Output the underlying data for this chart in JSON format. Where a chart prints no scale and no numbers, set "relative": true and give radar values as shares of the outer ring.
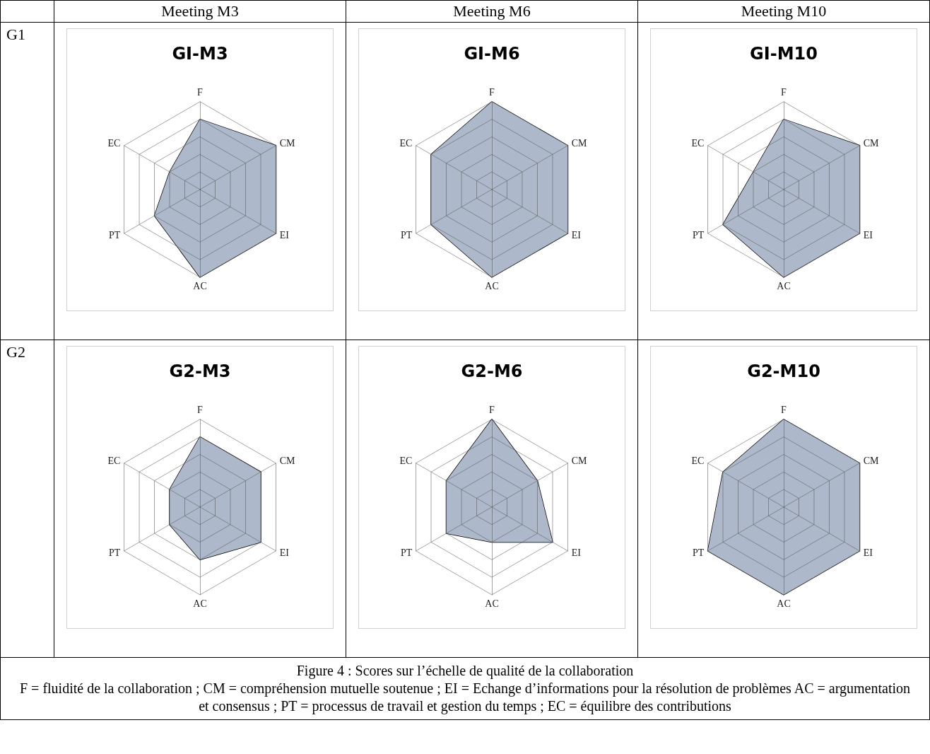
{
  "chart_data": [
    {
      "type": "radar",
      "title": "GI-M3",
      "relative": true,
      "categories": [
        "F",
        "CM",
        "EI",
        "AC",
        "PT",
        "EC"
      ],
      "series": [
        {
          "color": "#adb9ca",
          "values": [
            0.8,
            1,
            1,
            1,
            0.6,
            0.4
          ]
        }
      ],
      "annotations": [
        "Meeting M3",
        "G1"
      ]
    },
    {
      "type": "radar",
      "title": "GI-M6",
      "relative": true,
      "categories": [
        "F",
        "CM",
        "EI",
        "AC",
        "PT",
        "EC"
      ],
      "series": [
        {
          "color": "#adb9ca",
          "values": [
            1,
            1,
            1,
            1,
            0.8,
            0.8
          ]
        }
      ],
      "annotations": [
        "Meeting M6"
      ]
    },
    {
      "type": "radar",
      "title": "GI-M10",
      "relative": true,
      "categories": [
        "F",
        "CM",
        "EI",
        "AC",
        "PT",
        "EC"
      ],
      "series": [
        {
          "color": "#adb9ca",
          "values": [
            0.8,
            1,
            1,
            1,
            0.8,
            0.4
          ]
        }
      ],
      "annotations": [
        "Meeting M10"
      ]
    },
    {
      "type": "radar",
      "title": "G2-M3",
      "relative": true,
      "categories": [
        "F",
        "CM",
        "EI",
        "AC",
        "PT",
        "EC"
      ],
      "series": [
        {
          "color": "#adb9ca",
          "values": [
            0.8,
            0.8,
            0.8,
            0.6,
            0.4,
            0.4
          ]
        }
      ],
      "annotations": [
        "G2"
      ]
    },
    {
      "type": "radar",
      "title": "G2-M6",
      "relative": true,
      "categories": [
        "F",
        "CM",
        "EI",
        "AC",
        "PT",
        "EC"
      ],
      "series": [
        {
          "color": "#adb9ca",
          "values": [
            1,
            0.6,
            0.8,
            0.4,
            0.6,
            0.6
          ]
        }
      ]
    },
    {
      "type": "radar",
      "title": "G2-M10",
      "relative": true,
      "categories": [
        "F",
        "CM",
        "EI",
        "AC",
        "PT",
        "EC"
      ],
      "series": [
        {
          "color": "#adb9ca",
          "values": [
            1,
            1,
            1,
            1,
            1,
            0.8
          ]
        }
      ],
      "annotations": [
        "Figure 4 : Scores sur l’échelle de qualité de la collaboration",
        "F = fluidité de la collaboration ; CM = compréhension mutuelle soutenue ; EI = Echange d’informations pour la résolution de problèmes AC = argumentation et consensus ; PT = processus de travail et gestion du temps ; EC = équilibre des contributions"
      ]
    }
  ]
}
